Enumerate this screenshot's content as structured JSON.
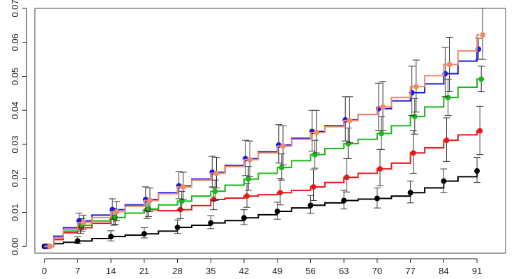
{
  "chart_data": {
    "type": "line",
    "title": "",
    "xlabel": "",
    "ylabel": "",
    "xlim": [
      -2,
      97
    ],
    "ylim": [
      -0.002,
      0.07
    ],
    "x_ticks": [
      0,
      7,
      14,
      21,
      28,
      35,
      42,
      49,
      56,
      63,
      70,
      77,
      84,
      91
    ],
    "x_tick_labels": [
      "0",
      "7",
      "14",
      "21",
      "28",
      "35",
      "42",
      "49",
      "56",
      "63",
      "70",
      "77",
      "84",
      "91"
    ],
    "y_ticks": [
      0,
      0.01,
      0.02,
      0.03,
      0.04,
      0.05,
      0.06,
      0.07
    ],
    "y_tick_labels": [
      "0.00",
      "0.01",
      "0.02",
      "0.03",
      "0.04",
      "0.05",
      "0.06",
      "0.07"
    ],
    "grid": false,
    "legend": "none",
    "series": [
      {
        "color": "#000000",
        "x": [
          0,
          2,
          4,
          7,
          10,
          14,
          17,
          21,
          24,
          28,
          31,
          35,
          38,
          42,
          45,
          49,
          52,
          56,
          59,
          63,
          66,
          70,
          73,
          77,
          80,
          84,
          87,
          91
        ],
        "y": [
          0,
          0.0008,
          0.0012,
          0.0016,
          0.0023,
          0.0029,
          0.0033,
          0.0037,
          0.0045,
          0.0056,
          0.0062,
          0.0069,
          0.0076,
          0.0084,
          0.0093,
          0.0103,
          0.0113,
          0.0121,
          0.0128,
          0.0135,
          0.0139,
          0.0141,
          0.0148,
          0.0158,
          0.0172,
          0.0192,
          0.0205,
          0.0222
        ],
        "points": [
          {
            "x": 0,
            "y": 0,
            "lo": 0,
            "hi": 0
          },
          {
            "x": 7,
            "y": 0.0016,
            "lo": 0.0008,
            "hi": 0.0028
          },
          {
            "x": 14,
            "y": 0.0029,
            "lo": 0.0016,
            "hi": 0.0046
          },
          {
            "x": 21,
            "y": 0.0037,
            "lo": 0.0025,
            "hi": 0.0055
          },
          {
            "x": 28,
            "y": 0.0056,
            "lo": 0.0038,
            "hi": 0.0078
          },
          {
            "x": 35,
            "y": 0.0069,
            "lo": 0.0052,
            "hi": 0.009
          },
          {
            "x": 42,
            "y": 0.0084,
            "lo": 0.0064,
            "hi": 0.0108
          },
          {
            "x": 49,
            "y": 0.0103,
            "lo": 0.008,
            "hi": 0.013
          },
          {
            "x": 56,
            "y": 0.0121,
            "lo": 0.0097,
            "hi": 0.015
          },
          {
            "x": 63,
            "y": 0.0135,
            "lo": 0.011,
            "hi": 0.0165
          },
          {
            "x": 70,
            "y": 0.0141,
            "lo": 0.0113,
            "hi": 0.0172
          },
          {
            "x": 77,
            "y": 0.0158,
            "lo": 0.0128,
            "hi": 0.0192
          },
          {
            "x": 84,
            "y": 0.0192,
            "lo": 0.0158,
            "hi": 0.0228
          },
          {
            "x": 91,
            "y": 0.0222,
            "lo": 0.0188,
            "hi": 0.0262
          }
        ]
      },
      {
        "color": "#e8191c",
        "x": [
          0,
          2,
          4,
          7,
          10,
          14,
          17,
          21,
          24,
          28,
          31,
          35,
          38,
          42,
          45,
          49,
          52,
          56,
          59,
          63,
          66,
          70,
          73,
          77,
          80,
          84,
          87,
          91
        ],
        "y": [
          0,
          0.002,
          0.004,
          0.0055,
          0.0068,
          0.0085,
          0.0098,
          0.0108,
          0.0105,
          0.0108,
          0.012,
          0.0138,
          0.0142,
          0.0148,
          0.0152,
          0.0158,
          0.0165,
          0.0175,
          0.0188,
          0.0203,
          0.0215,
          0.0228,
          0.0245,
          0.0275,
          0.029,
          0.0312,
          0.0328,
          0.034
        ],
        "points": [
          {
            "x": 0,
            "y": 0,
            "lo": 0,
            "hi": 0
          },
          {
            "x": 7,
            "y": 0.0055,
            "lo": 0.0038,
            "hi": 0.0075
          },
          {
            "x": 14,
            "y": 0.0085,
            "lo": 0.0062,
            "hi": 0.0112
          },
          {
            "x": 21,
            "y": 0.0108,
            "lo": 0.0082,
            "hi": 0.0138
          },
          {
            "x": 28,
            "y": 0.0108,
            "lo": 0.0082,
            "hi": 0.014
          },
          {
            "x": 35,
            "y": 0.0138,
            "lo": 0.0108,
            "hi": 0.0172
          },
          {
            "x": 42,
            "y": 0.0148,
            "lo": 0.0115,
            "hi": 0.0185
          },
          {
            "x": 49,
            "y": 0.0158,
            "lo": 0.0122,
            "hi": 0.02
          },
          {
            "x": 56,
            "y": 0.0175,
            "lo": 0.0135,
            "hi": 0.0225
          },
          {
            "x": 63,
            "y": 0.0203,
            "lo": 0.016,
            "hi": 0.0258
          },
          {
            "x": 70,
            "y": 0.0228,
            "lo": 0.0178,
            "hi": 0.0285
          },
          {
            "x": 77,
            "y": 0.0275,
            "lo": 0.0215,
            "hi": 0.034
          },
          {
            "x": 84,
            "y": 0.0312,
            "lo": 0.025,
            "hi": 0.0378
          },
          {
            "x": 91,
            "y": 0.034,
            "lo": 0.027,
            "hi": 0.0412
          }
        ]
      },
      {
        "color": "#1ab81a",
        "x": [
          0,
          2,
          4,
          7,
          10,
          14,
          17,
          21,
          24,
          28,
          31,
          35,
          38,
          42,
          45,
          49,
          52,
          56,
          59,
          63,
          66,
          70,
          73,
          77,
          80,
          84,
          87,
          91
        ],
        "y": [
          0,
          0.0025,
          0.0045,
          0.0062,
          0.0075,
          0.0085,
          0.0098,
          0.011,
          0.0122,
          0.0133,
          0.0148,
          0.0162,
          0.018,
          0.0198,
          0.0215,
          0.0232,
          0.0252,
          0.027,
          0.0288,
          0.0302,
          0.0315,
          0.0332,
          0.0355,
          0.0382,
          0.041,
          0.0438,
          0.0468,
          0.0492
        ],
        "points": [
          {
            "x": 0,
            "y": 0,
            "lo": 0,
            "hi": 0
          },
          {
            "x": 7,
            "y": 0.0062,
            "lo": 0.0045,
            "hi": 0.0082
          },
          {
            "x": 14,
            "y": 0.0085,
            "lo": 0.0065,
            "hi": 0.0108
          },
          {
            "x": 21,
            "y": 0.011,
            "lo": 0.0088,
            "hi": 0.0135
          },
          {
            "x": 28,
            "y": 0.0133,
            "lo": 0.0108,
            "hi": 0.0162
          },
          {
            "x": 35,
            "y": 0.0162,
            "lo": 0.0135,
            "hi": 0.0195
          },
          {
            "x": 42,
            "y": 0.0198,
            "lo": 0.0165,
            "hi": 0.0235
          },
          {
            "x": 49,
            "y": 0.0232,
            "lo": 0.0195,
            "hi": 0.0272
          },
          {
            "x": 56,
            "y": 0.027,
            "lo": 0.023,
            "hi": 0.0312
          },
          {
            "x": 63,
            "y": 0.0302,
            "lo": 0.0258,
            "hi": 0.0348
          },
          {
            "x": 70,
            "y": 0.0332,
            "lo": 0.0285,
            "hi": 0.0382
          },
          {
            "x": 77,
            "y": 0.0382,
            "lo": 0.033,
            "hi": 0.0435
          },
          {
            "x": 84,
            "y": 0.0438,
            "lo": 0.0385,
            "hi": 0.0492
          },
          {
            "x": 91,
            "y": 0.0492,
            "lo": 0.0455,
            "hi": 0.053
          }
        ]
      },
      {
        "color": "#1b1be6",
        "x": [
          0,
          2,
          4,
          7,
          10,
          14,
          17,
          21,
          24,
          28,
          31,
          35,
          38,
          42,
          45,
          49,
          52,
          56,
          59,
          63,
          66,
          70,
          73,
          77,
          80,
          84,
          87,
          91
        ],
        "y": [
          0,
          0.003,
          0.0055,
          0.0075,
          0.0092,
          0.0108,
          0.0122,
          0.0138,
          0.0158,
          0.0178,
          0.0198,
          0.0218,
          0.0238,
          0.0258,
          0.0278,
          0.0298,
          0.0318,
          0.0338,
          0.0355,
          0.0372,
          0.0388,
          0.0405,
          0.0428,
          0.0452,
          0.0478,
          0.0508,
          0.0545,
          0.058
        ],
        "points": [
          {
            "x": 0,
            "y": 0,
            "lo": 0,
            "hi": 0
          },
          {
            "x": 7,
            "y": 0.0075,
            "lo": 0.0055,
            "hi": 0.0098
          },
          {
            "x": 14,
            "y": 0.0108,
            "lo": 0.008,
            "hi": 0.014
          },
          {
            "x": 21,
            "y": 0.0138,
            "lo": 0.0105,
            "hi": 0.0175
          },
          {
            "x": 28,
            "y": 0.0178,
            "lo": 0.014,
            "hi": 0.022
          },
          {
            "x": 35,
            "y": 0.0218,
            "lo": 0.0175,
            "hi": 0.0265
          },
          {
            "x": 42,
            "y": 0.0258,
            "lo": 0.0208,
            "hi": 0.0312
          },
          {
            "x": 49,
            "y": 0.0298,
            "lo": 0.0245,
            "hi": 0.0358
          },
          {
            "x": 56,
            "y": 0.0338,
            "lo": 0.028,
            "hi": 0.04
          },
          {
            "x": 63,
            "y": 0.0372,
            "lo": 0.031,
            "hi": 0.044
          },
          {
            "x": 70,
            "y": 0.0405,
            "lo": 0.034,
            "hi": 0.048
          },
          {
            "x": 77,
            "y": 0.0452,
            "lo": 0.0385,
            "hi": 0.053
          },
          {
            "x": 84,
            "y": 0.0508,
            "lo": 0.044,
            "hi": 0.0585
          },
          {
            "x": 91,
            "y": 0.058,
            "lo": 0.055,
            "hi": 0.0612
          }
        ]
      },
      {
        "color": "#f08a6e",
        "x": [
          0,
          2,
          4,
          7,
          10,
          14,
          17,
          21,
          24,
          28,
          31,
          35,
          38,
          42,
          45,
          49,
          52,
          56,
          59,
          63,
          66,
          70,
          73,
          77,
          80,
          84,
          87,
          91
        ],
        "y": [
          0,
          0.0025,
          0.005,
          0.007,
          0.0085,
          0.0102,
          0.0118,
          0.0135,
          0.0155,
          0.0175,
          0.0195,
          0.0215,
          0.0235,
          0.0255,
          0.0275,
          0.0295,
          0.0315,
          0.0335,
          0.0352,
          0.037,
          0.0388,
          0.041,
          0.0438,
          0.047,
          0.0502,
          0.0535,
          0.0575,
          0.0622
        ],
        "points": [
          {
            "x": 0,
            "y": 0,
            "lo": 0,
            "hi": 0
          },
          {
            "x": 7,
            "y": 0.007,
            "lo": 0.005,
            "hi": 0.0092
          },
          {
            "x": 14,
            "y": 0.0102,
            "lo": 0.0075,
            "hi": 0.0132
          },
          {
            "x": 21,
            "y": 0.0135,
            "lo": 0.0102,
            "hi": 0.0172
          },
          {
            "x": 28,
            "y": 0.0175,
            "lo": 0.0138,
            "hi": 0.0218
          },
          {
            "x": 35,
            "y": 0.0215,
            "lo": 0.0172,
            "hi": 0.0262
          },
          {
            "x": 42,
            "y": 0.0255,
            "lo": 0.0205,
            "hi": 0.031
          },
          {
            "x": 49,
            "y": 0.0295,
            "lo": 0.024,
            "hi": 0.0355
          },
          {
            "x": 56,
            "y": 0.0335,
            "lo": 0.0275,
            "hi": 0.04
          },
          {
            "x": 63,
            "y": 0.037,
            "lo": 0.0305,
            "hi": 0.044
          },
          {
            "x": 70,
            "y": 0.041,
            "lo": 0.034,
            "hi": 0.0485
          },
          {
            "x": 77,
            "y": 0.047,
            "lo": 0.0395,
            "hi": 0.0548
          },
          {
            "x": 84,
            "y": 0.0535,
            "lo": 0.0455,
            "hi": 0.0615
          },
          {
            "x": 91,
            "y": 0.0622,
            "lo": 0.055,
            "hi": 0.07
          }
        ]
      }
    ]
  }
}
